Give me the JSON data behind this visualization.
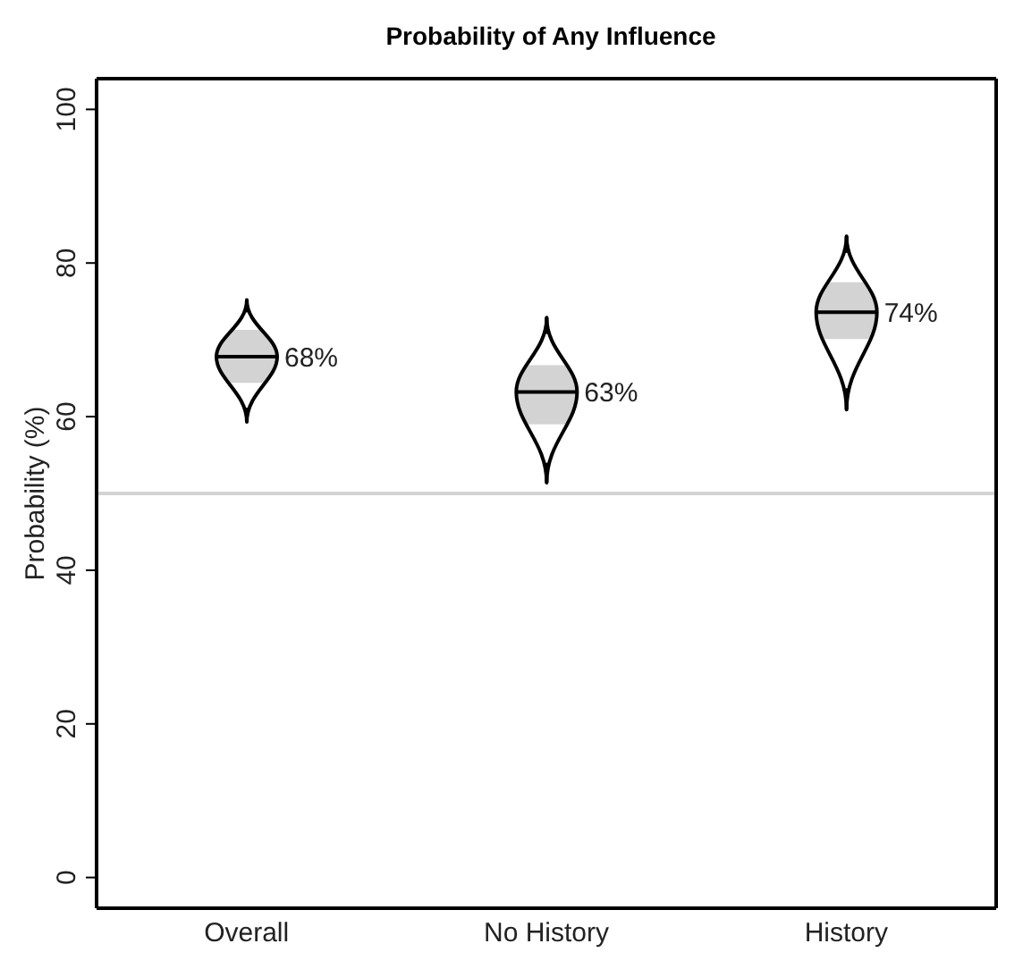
{
  "chart_data": {
    "type": "box",
    "title": "Probability of Any Influence",
    "ylabel": "Probability (%)",
    "categories": [
      "Overall",
      "No History",
      "History"
    ],
    "boxes": [
      {
        "low": 59.3,
        "q1": 64.4,
        "median": 67.8,
        "q3": 71.3,
        "high": 75.2
      },
      {
        "low": 51.4,
        "q1": 59,
        "median": 63.2,
        "q3": 66.7,
        "high": 72.9
      },
      {
        "low": 60.9,
        "q1": 70.1,
        "median": 73.6,
        "q3": 77.5,
        "high": 83.5
      }
    ],
    "value_labels": [
      "68%",
      "63%",
      "74%"
    ],
    "color": "#d3d3d3",
    "ylim": [
      -4,
      104
    ],
    "yticks": [
      0,
      20,
      40,
      60,
      80,
      100
    ],
    "grid": false,
    "legend": false,
    "ref_lines": [
      {
        "axis": "y",
        "value": 50,
        "color": "#d3d3d3"
      }
    ]
  }
}
